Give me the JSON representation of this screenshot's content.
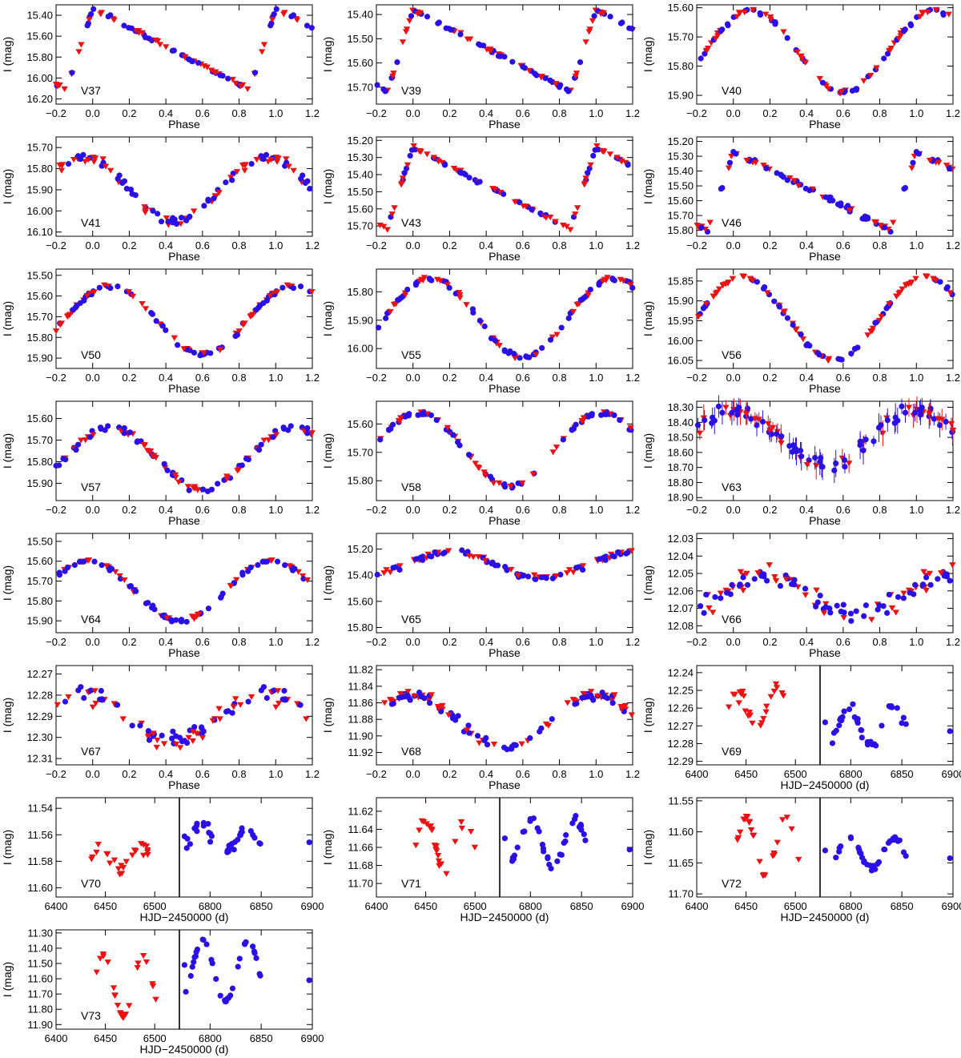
{
  "figure": {
    "colors": {
      "blue": "#2a10e6",
      "red": "#ee1111",
      "axis": "#000000"
    },
    "symbols": {
      "blue": "filled-circle",
      "red": "filled-down-triangle"
    },
    "ylabel": "I (mag)",
    "phase_xlabel": "Phase",
    "time_xlabel": "HJD−2450000 (d)"
  },
  "chart_data": [
    {
      "type": "scatter",
      "name": "V37",
      "label": "V37",
      "xaxis": "Phase",
      "xlim": [
        -0.2,
        1.2
      ],
      "xticks": [
        "−0.2",
        "0.0",
        "0.2",
        "0.4",
        "0.6",
        "0.8",
        "1.0",
        "1.2"
      ],
      "ylim": [
        16.25,
        15.3
      ],
      "yticks": [
        "15.40",
        "15.60",
        "15.80",
        "16.00",
        "16.20"
      ],
      "model": "rrab",
      "min": 15.33,
      "max": 16.12,
      "noise": 0.02
    },
    {
      "type": "scatter",
      "name": "V39",
      "label": "V39",
      "xaxis": "Phase",
      "xlim": [
        -0.2,
        1.2
      ],
      "xticks": [
        "−0.2",
        "0.0",
        "0.2",
        "0.4",
        "0.6",
        "0.8",
        "1.0",
        "1.2"
      ],
      "ylim": [
        15.77,
        15.36
      ],
      "yticks": [
        "15.40",
        "15.50",
        "15.60",
        "15.70"
      ],
      "model": "rrab",
      "min": 15.38,
      "max": 15.72,
      "noise": 0.008
    },
    {
      "type": "scatter",
      "name": "V40",
      "label": "V40",
      "xaxis": "Phase",
      "xlim": [
        -0.2,
        1.2
      ],
      "xticks": [
        "−0.2",
        "0.0",
        "0.2",
        "0.4",
        "0.6",
        "0.8",
        "1.0",
        "1.2"
      ],
      "ylim": [
        15.93,
        15.59
      ],
      "yticks": [
        "15.60",
        "15.70",
        "15.80",
        "15.90"
      ],
      "model": "sine",
      "min": 15.61,
      "max": 15.89,
      "phi0": 0.6,
      "noise": 0.008
    },
    {
      "type": "scatter",
      "name": "V41",
      "label": "V41",
      "xaxis": "Phase",
      "xlim": [
        -0.2,
        1.2
      ],
      "xticks": [
        "−0.2",
        "0.0",
        "0.2",
        "0.4",
        "0.6",
        "0.8",
        "1.0",
        "1.2"
      ],
      "ylim": [
        16.12,
        15.65
      ],
      "yticks": [
        "15.70",
        "15.80",
        "15.90",
        "16.00",
        "16.10"
      ],
      "model": "sine",
      "min": 15.75,
      "max": 16.05,
      "phi0": 0.45,
      "noise": 0.025
    },
    {
      "type": "scatter",
      "name": "V43",
      "label": "V43",
      "xaxis": "Phase",
      "xlim": [
        -0.2,
        1.2
      ],
      "xticks": [
        "−0.2",
        "0.0",
        "0.2",
        "0.4",
        "0.6",
        "0.8",
        "1.0",
        "1.2"
      ],
      "ylim": [
        15.76,
        15.18
      ],
      "yticks": [
        "15.20",
        "15.30",
        "15.40",
        "15.50",
        "15.60",
        "15.70"
      ],
      "model": "rrab",
      "min": 15.24,
      "max": 15.72,
      "noise": 0.01
    },
    {
      "type": "scatter",
      "name": "V46",
      "label": "V46",
      "xaxis": "Phase",
      "xlim": [
        -0.2,
        1.2
      ],
      "xticks": [
        "−0.2",
        "0.0",
        "0.2",
        "0.4",
        "0.6",
        "0.8",
        "1.0",
        "1.2"
      ],
      "ylim": [
        15.84,
        15.17
      ],
      "yticks": [
        "15.20",
        "15.30",
        "15.40",
        "15.50",
        "15.60",
        "15.70",
        "15.80"
      ],
      "model": "rrab",
      "min": 15.27,
      "max": 15.8,
      "noise": 0.02
    },
    {
      "type": "scatter",
      "name": "V50",
      "label": "V50",
      "xaxis": "Phase",
      "xlim": [
        -0.2,
        1.2
      ],
      "xticks": [
        "−0.2",
        "0.0",
        "0.2",
        "0.4",
        "0.6",
        "0.8",
        "1.0",
        "1.2"
      ],
      "ylim": [
        15.95,
        15.47
      ],
      "yticks": [
        "15.50",
        "15.60",
        "15.70",
        "15.80",
        "15.90"
      ],
      "model": "sine",
      "min": 15.55,
      "max": 15.88,
      "phi0": 0.6,
      "noise": 0.012
    },
    {
      "type": "scatter",
      "name": "V55",
      "label": "V55",
      "xaxis": "Phase",
      "xlim": [
        -0.2,
        1.2
      ],
      "xticks": [
        "−0.2",
        "0.0",
        "0.2",
        "0.4",
        "0.6",
        "0.8",
        "1.0",
        "1.2"
      ],
      "ylim": [
        16.07,
        15.72
      ],
      "yticks": [
        "15.80",
        "15.90",
        "16.00"
      ],
      "model": "sine",
      "min": 15.75,
      "max": 16.03,
      "phi0": 0.6,
      "noise": 0.01
    },
    {
      "type": "scatter",
      "name": "V56",
      "label": "V56",
      "xaxis": "Phase",
      "xlim": [
        -0.2,
        1.2
      ],
      "xticks": [
        "−0.2",
        "0.0",
        "0.2",
        "0.4",
        "0.6",
        "0.8",
        "1.0",
        "1.2"
      ],
      "ylim": [
        16.07,
        15.82
      ],
      "yticks": [
        "15.85",
        "15.90",
        "15.95",
        "16.00",
        "16.05"
      ],
      "model": "sine",
      "min": 15.84,
      "max": 16.05,
      "phi0": 0.55,
      "noise": 0.006
    },
    {
      "type": "scatter",
      "name": "V57",
      "label": "V57",
      "xaxis": "Phase",
      "xlim": [
        -0.2,
        1.2
      ],
      "xticks": [
        "−0.2",
        "0.0",
        "0.2",
        "0.4",
        "0.6",
        "0.8",
        "1.0",
        "1.2"
      ],
      "ylim": [
        15.98,
        15.52
      ],
      "yticks": [
        "15.60",
        "15.70",
        "15.80",
        "15.90"
      ],
      "model": "sine",
      "min": 15.64,
      "max": 15.93,
      "phi0": 0.6,
      "noise": 0.015
    },
    {
      "type": "scatter",
      "name": "V58",
      "label": "V58",
      "xaxis": "Phase",
      "xlim": [
        -0.2,
        1.2
      ],
      "xticks": [
        "−0.2",
        "0.0",
        "0.2",
        "0.4",
        "0.6",
        "0.8",
        "1.0",
        "1.2"
      ],
      "ylim": [
        15.87,
        15.52
      ],
      "yticks": [
        "15.60",
        "15.70",
        "15.80"
      ],
      "model": "sine",
      "min": 15.56,
      "max": 15.82,
      "phi0": 0.53,
      "noise": 0.008
    },
    {
      "type": "scatter",
      "name": "V63",
      "label": "V63",
      "xaxis": "Phase",
      "xlim": [
        -0.2,
        1.2
      ],
      "xticks": [
        "−0.2",
        "0.0",
        "0.2",
        "0.4",
        "0.6",
        "0.8",
        "1.0",
        "1.2"
      ],
      "ylim": [
        18.92,
        18.26
      ],
      "yticks": [
        "18.30",
        "18.40",
        "18.50",
        "18.60",
        "18.70",
        "18.80",
        "18.90"
      ],
      "model": "sine",
      "min": 18.33,
      "max": 18.68,
      "phi0": 0.5,
      "noise": 0.05,
      "errorbars": true
    },
    {
      "type": "scatter",
      "name": "V64",
      "label": "V64",
      "xaxis": "Phase",
      "xlim": [
        -0.2,
        1.2
      ],
      "xticks": [
        "−0.2",
        "0.0",
        "0.2",
        "0.4",
        "0.6",
        "0.8",
        "1.0",
        "1.2"
      ],
      "ylim": [
        15.96,
        15.46
      ],
      "yticks": [
        "15.50",
        "15.60",
        "15.70",
        "15.80",
        "15.90"
      ],
      "model": "sine",
      "min": 15.6,
      "max": 15.9,
      "phi0": 0.48,
      "noise": 0.012
    },
    {
      "type": "scatter",
      "name": "V65",
      "label": "V65",
      "xaxis": "Phase",
      "xlim": [
        -0.2,
        1.2
      ],
      "xticks": [
        "−0.2",
        "0.0",
        "0.2",
        "0.4",
        "0.6",
        "0.8",
        "1.0",
        "1.2"
      ],
      "ylim": [
        15.84,
        15.08
      ],
      "yticks": [
        "15.20",
        "15.40",
        "15.60",
        "15.80"
      ],
      "model": "sine",
      "min": 15.22,
      "max": 15.42,
      "phi0": 0.7,
      "noise": 0.025
    },
    {
      "type": "scatter",
      "name": "V66",
      "label": "V66",
      "xaxis": "Phase",
      "xlim": [
        -0.2,
        1.2
      ],
      "xticks": [
        "−0.2",
        "0.0",
        "0.2",
        "0.4",
        "0.6",
        "0.8",
        "1.0",
        "1.2"
      ],
      "ylim": [
        12.084,
        12.027
      ],
      "yticks": [
        "12.03",
        "12.04",
        "12.05",
        "12.06",
        "12.07",
        "12.08"
      ],
      "model": "sine",
      "min": 12.05,
      "max": 12.076,
      "phi0": 0.68,
      "noise": 0.006
    },
    {
      "type": "scatter",
      "name": "V67",
      "label": "V67",
      "xaxis": "Phase",
      "xlim": [
        -0.2,
        1.2
      ],
      "xticks": [
        "−0.2",
        "0.0",
        "0.2",
        "0.4",
        "0.6",
        "0.8",
        "1.0",
        "1.2"
      ],
      "ylim": [
        12.313,
        12.266
      ],
      "yticks": [
        "12.27",
        "12.28",
        "12.29",
        "12.30",
        "12.31"
      ],
      "model": "sine",
      "min": 12.28,
      "max": 12.302,
      "phi0": 0.45,
      "noise": 0.006
    },
    {
      "type": "scatter",
      "name": "V68",
      "label": "V68",
      "xaxis": "Phase",
      "xlim": [
        -0.2,
        1.2
      ],
      "xticks": [
        "−0.2",
        "0.0",
        "0.2",
        "0.4",
        "0.6",
        "0.8",
        "1.0",
        "1.2"
      ],
      "ylim": [
        11.935,
        11.815
      ],
      "yticks": [
        "11.82",
        "11.84",
        "11.86",
        "11.88",
        "11.90",
        "11.92"
      ],
      "model": "sine",
      "min": 11.85,
      "max": 11.915,
      "phi0": 0.5,
      "noise": 0.006
    },
    {
      "type": "scatter",
      "name": "V69",
      "label": "V69",
      "xaxis": "HJD−2450000 (d)",
      "xlim": [
        6400,
        6900
      ],
      "xticks": [
        "6400",
        "6450",
        "6500",
        "6800",
        "6850",
        "6900"
      ],
      "ylim": [
        12.292,
        12.236
      ],
      "yticks": [
        "12.24",
        "12.25",
        "12.26",
        "12.27",
        "12.28",
        "12.29"
      ],
      "red": {
        "center": 6462,
        "mid": 12.26,
        "amp": 0.009,
        "noise": 0.006
      },
      "blue": {
        "center": 6820,
        "mid": 12.27,
        "amp": 0.01,
        "noise": 0.004
      }
    },
    {
      "type": "scatter",
      "name": "V70",
      "label": "V70",
      "xaxis": "HJD−2450000 (d)",
      "xlim": [
        6400,
        6900
      ],
      "xticks": [
        "6400",
        "6450",
        "6500",
        "6800",
        "6850",
        "6900"
      ],
      "ylim": [
        11.607,
        11.532
      ],
      "yticks": [
        "11.54",
        "11.56",
        "11.58",
        "11.60"
      ],
      "red": {
        "center": 6465,
        "mid": 11.578,
        "amp": 0.008,
        "noise": 0.007
      },
      "blue": {
        "center": 6815,
        "mid": 11.563,
        "amp": 0.009,
        "noise": 0.007
      }
    },
    {
      "type": "scatter",
      "name": "V71",
      "label": "V71",
      "xaxis": "HJD−2450000 (d)",
      "xlim": [
        6400,
        6900
      ],
      "xticks": [
        "6400",
        "6450",
        "6500",
        "6800",
        "6850",
        "6900"
      ],
      "ylim": [
        11.715,
        11.605
      ],
      "yticks": [
        "11.62",
        "11.64",
        "11.66",
        "11.68",
        "11.70"
      ],
      "red": {
        "center": 6470,
        "mid": 11.66,
        "amp": 0.03,
        "noise": 0.006
      },
      "blue": {
        "center": 6822,
        "mid": 11.655,
        "amp": 0.025,
        "noise": 0.005
      }
    },
    {
      "type": "scatter",
      "name": "V72",
      "label": "V72",
      "xaxis": "HJD−2450000 (d)",
      "xlim": [
        6400,
        6900
      ],
      "xticks": [
        "6400",
        "6450",
        "6500",
        "6800",
        "6850",
        "6900"
      ],
      "ylim": [
        11.705,
        11.545
      ],
      "yticks": [
        "11.55",
        "11.60",
        "11.65",
        "11.70"
      ],
      "red": {
        "center": 6470,
        "mid": 11.625,
        "amp": 0.045,
        "noise": 0.008
      },
      "blue": {
        "center": 6820,
        "mid": 11.635,
        "amp": 0.025,
        "noise": 0.006
      }
    },
    {
      "type": "scatter",
      "name": "V73",
      "label": "V73",
      "xaxis": "HJD−2450000 (d)",
      "xlim": [
        6400,
        6900
      ],
      "xticks": [
        "6400",
        "6450",
        "6500",
        "6800",
        "6850",
        "6900"
      ],
      "ylim": [
        11.93,
        11.28
      ],
      "yticks": [
        "11.30",
        "11.40",
        "11.50",
        "11.60",
        "11.70",
        "11.80",
        "11.90"
      ],
      "red": {
        "center": 6468,
        "mid": 11.65,
        "amp": 0.2,
        "noise": 0.015
      },
      "blue": {
        "center": 6815,
        "mid": 11.55,
        "amp": 0.2,
        "noise": 0.012
      }
    }
  ]
}
